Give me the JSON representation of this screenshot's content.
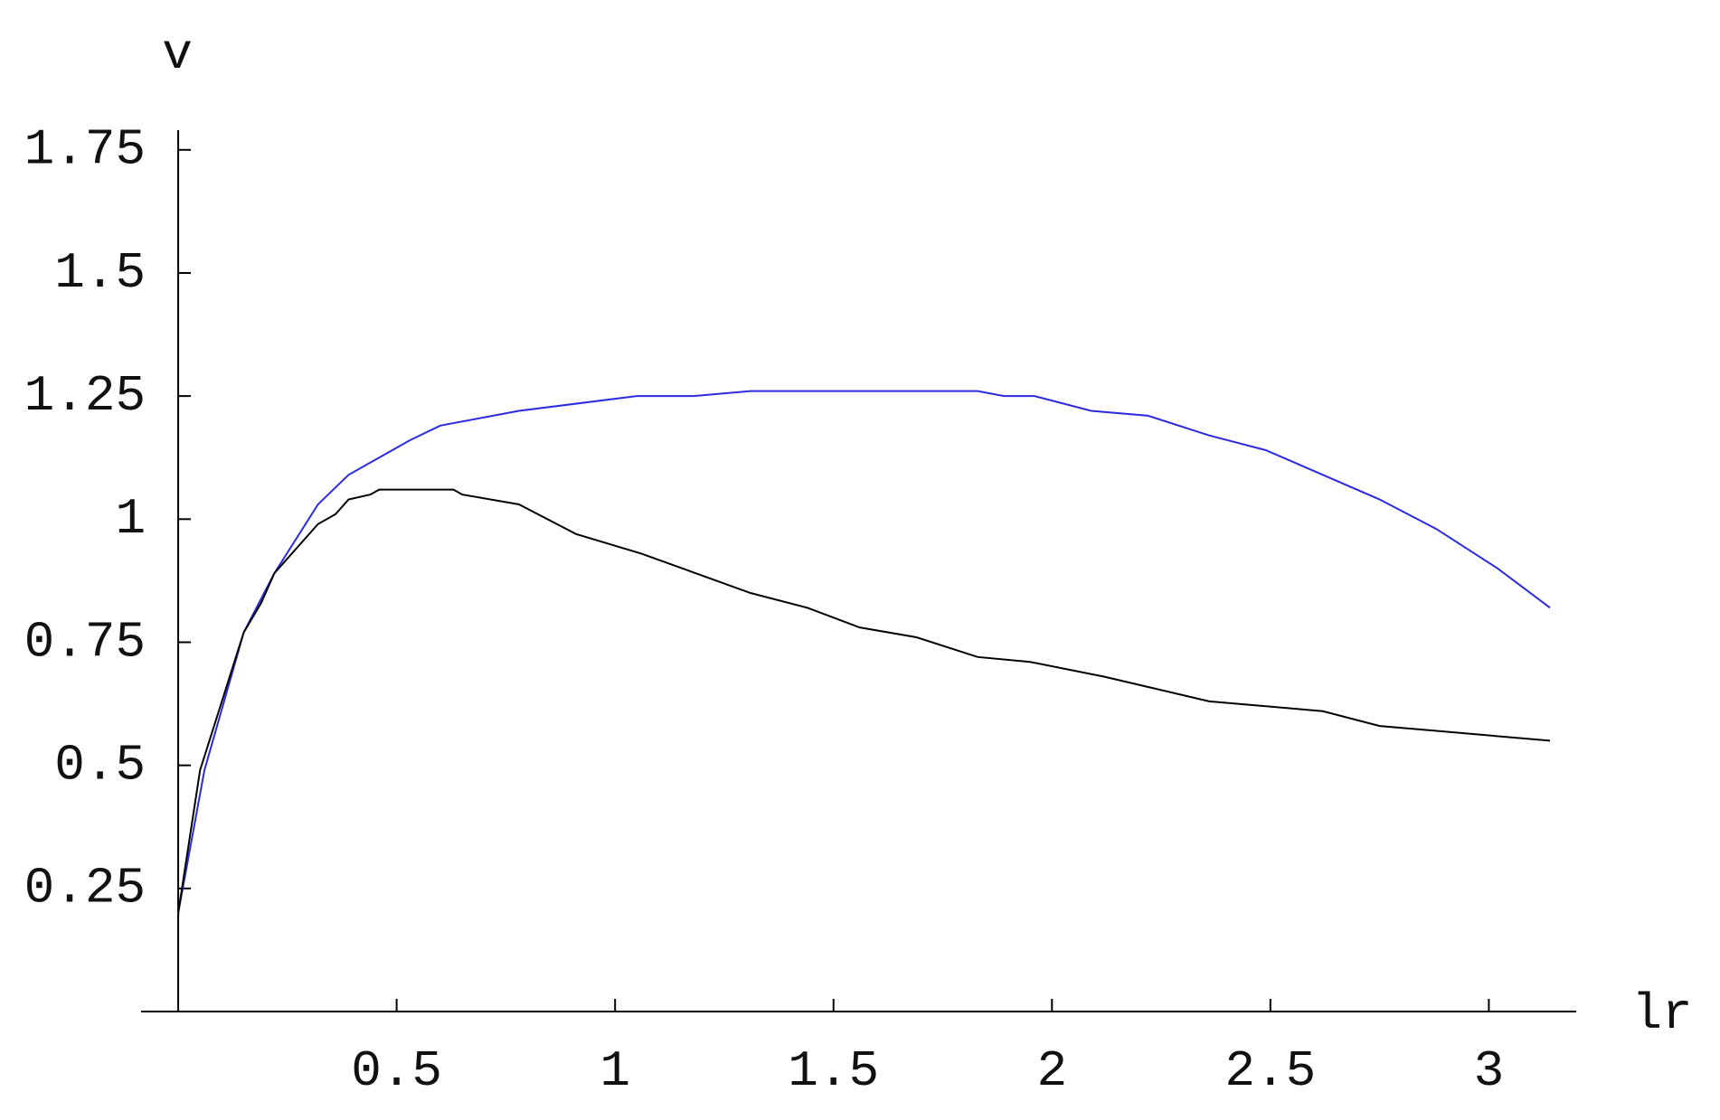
{
  "chart_data": {
    "type": "line",
    "x_label": "lr",
    "y_label": "v",
    "xlim": [
      -0.085,
      3.2
    ],
    "ylim": [
      0,
      1.79
    ],
    "xticks": [
      0.5,
      1,
      1.5,
      2,
      2.5,
      3
    ],
    "yticks": [
      0.25,
      0.5,
      0.75,
      1,
      1.25,
      1.5,
      1.75
    ],
    "series": [
      {
        "color": "#2a2ae0",
        "x": [
          0,
          0.06,
          0.15,
          0.22,
          0.32,
          0.39,
          0.53,
          0.6,
          0.78,
          1.05,
          1.18,
          1.31,
          1.83,
          1.89,
          1.96,
          2.09,
          2.22,
          2.36,
          2.49,
          2.62,
          2.75,
          2.88,
          3.02,
          3.14
        ],
        "values": [
          0.2,
          0.49,
          0.77,
          0.89,
          1.03,
          1.09,
          1.16,
          1.19,
          1.22,
          1.25,
          1.25,
          1.26,
          1.26,
          1.25,
          1.25,
          1.22,
          1.21,
          1.17,
          1.14,
          1.09,
          1.04,
          0.98,
          0.9,
          0.82
        ]
      },
      {
        "color": "#000000",
        "x": [
          0,
          0.05,
          0.15,
          0.19,
          0.22,
          0.27,
          0.32,
          0.36,
          0.39,
          0.44,
          0.46,
          0.63,
          0.65,
          0.78,
          0.91,
          1.06,
          1.31,
          1.44,
          1.56,
          1.69,
          1.83,
          1.95,
          2.12,
          2.36,
          2.62,
          2.75,
          2.88,
          3.14
        ],
        "values": [
          0.2,
          0.49,
          0.77,
          0.83,
          0.89,
          0.94,
          0.99,
          1.01,
          1.04,
          1.05,
          1.06,
          1.06,
          1.05,
          1.03,
          0.97,
          0.93,
          0.85,
          0.82,
          0.78,
          0.76,
          0.72,
          0.71,
          0.68,
          0.63,
          0.61,
          0.58,
          0.57,
          0.55
        ]
      }
    ]
  }
}
